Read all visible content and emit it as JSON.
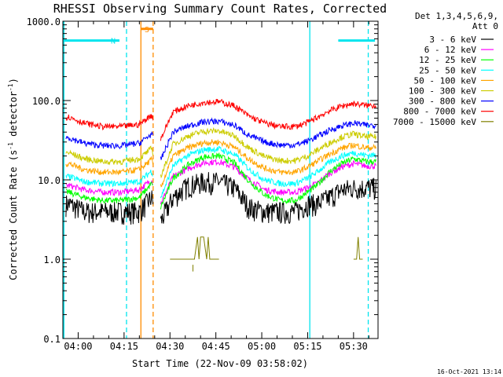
{
  "chart_data": {
    "type": "line",
    "title": "RHESSI Observing Summary Count Rates, Corrected",
    "xlabel": "Start Time (22-Nov-09 03:58:02)",
    "ylabel_prefix": "Corrected Count Rate (s",
    "ylabel_exp1": "-1",
    "ylabel_mid": " detector",
    "ylabel_exp2": "-1",
    "ylabel_suffix": ")",
    "x_unit": "minutes",
    "xlim": [
      235,
      338
    ],
    "ylim": [
      0.1,
      1000
    ],
    "yscale": "log",
    "x_ticks": [
      {
        "value": 240,
        "label": "04:00"
      },
      {
        "value": 255,
        "label": "04:15"
      },
      {
        "value": 270,
        "label": "04:30"
      },
      {
        "value": 285,
        "label": "04:45"
      },
      {
        "value": 300,
        "label": "05:00"
      },
      {
        "value": 315,
        "label": "05:15"
      },
      {
        "value": 330,
        "label": "05:30"
      }
    ],
    "y_ticks": [
      {
        "value": 0.1,
        "label": "0.1"
      },
      {
        "value": 1,
        "label": "1.0"
      },
      {
        "value": 10,
        "label": "10.0"
      },
      {
        "value": 100,
        "label": "100.0"
      },
      {
        "value": 1000,
        "label": "1000.0"
      }
    ],
    "legend": {
      "header1": "Det 1,3,4,5,6,9,",
      "header2": "Att 0",
      "placement": "right"
    },
    "series": [
      {
        "name": "3 - 6 keV",
        "color": "#000000",
        "x": [
          237,
          242,
          248,
          254,
          260,
          264,
          267,
          271,
          276,
          281,
          286,
          291,
          296,
          301,
          306,
          311,
          315,
          318,
          322,
          326,
          330,
          334
        ],
        "values": [
          5.0,
          4.0,
          4.0,
          4.0,
          4.0,
          6.0,
          3.0,
          6.0,
          8.5,
          9.5,
          9.5,
          8.0,
          4.5,
          4.0,
          4.0,
          4.0,
          5.0,
          5.0,
          6.0,
          7.5,
          8.0,
          8.0
        ]
      },
      {
        "name": "6 - 12 keV",
        "color": "#ff00ff",
        "x": [
          237,
          242,
          248,
          254,
          260,
          264,
          267,
          271,
          276,
          281,
          286,
          291,
          296,
          301,
          306,
          311,
          315,
          318,
          322,
          326,
          330,
          334
        ],
        "values": [
          8.5,
          7.5,
          7.0,
          7.0,
          7.5,
          10.0,
          5.0,
          11.0,
          14.0,
          16.5,
          17.0,
          14.5,
          10.0,
          7.5,
          7.0,
          7.0,
          8.0,
          9.0,
          12.0,
          14.5,
          16.0,
          15.0
        ]
      },
      {
        "name": "12 - 25 keV",
        "color": "#00ff00",
        "x": [
          237,
          242,
          248,
          254,
          260,
          264,
          267,
          271,
          276,
          281,
          286,
          291,
          296,
          301,
          306,
          311,
          315,
          318,
          322,
          326,
          330,
          334
        ],
        "values": [
          7.0,
          6.0,
          5.5,
          5.5,
          6.0,
          9.0,
          4.5,
          10.5,
          15.5,
          19.5,
          20.0,
          16.5,
          9.5,
          6.5,
          5.5,
          5.5,
          7.0,
          8.5,
          12.5,
          16.0,
          18.5,
          17.0
        ]
      },
      {
        "name": "25 - 50 keV",
        "color": "#00ffff",
        "x": [
          237,
          242,
          248,
          254,
          260,
          264,
          267,
          271,
          276,
          281,
          286,
          291,
          296,
          301,
          306,
          311,
          315,
          318,
          322,
          326,
          330,
          334
        ],
        "values": [
          11.0,
          9.5,
          9.0,
          9.0,
          9.5,
          13.0,
          6.0,
          15.0,
          20.5,
          24.0,
          24.5,
          21.0,
          13.5,
          10.0,
          9.0,
          9.0,
          10.5,
          12.5,
          16.5,
          20.0,
          22.0,
          20.5
        ]
      },
      {
        "name": "50 - 100 keV",
        "color": "#ffa500",
        "x": [
          237,
          242,
          248,
          254,
          260,
          264,
          267,
          271,
          276,
          281,
          286,
          291,
          296,
          301,
          306,
          311,
          315,
          318,
          322,
          326,
          330,
          334
        ],
        "values": [
          16.0,
          13.5,
          12.5,
          12.5,
          13.5,
          18.0,
          8.0,
          20.0,
          25.5,
          29.5,
          30.0,
          26.0,
          18.0,
          14.0,
          12.5,
          12.5,
          14.5,
          17.0,
          21.0,
          25.0,
          27.5,
          25.5
        ]
      },
      {
        "name": "100 - 300 keV",
        "color": "#cccc00",
        "x": [
          237,
          242,
          248,
          254,
          260,
          264,
          267,
          271,
          276,
          281,
          286,
          291,
          296,
          301,
          306,
          311,
          315,
          318,
          322,
          326,
          330,
          334
        ],
        "values": [
          22.0,
          18.5,
          17.0,
          17.0,
          18.5,
          25.0,
          11.0,
          28.0,
          36.0,
          41.0,
          41.5,
          36.0,
          25.0,
          19.5,
          17.5,
          17.5,
          20.0,
          23.5,
          29.0,
          34.5,
          38.0,
          35.0
        ]
      },
      {
        "name": "300 - 800 keV",
        "color": "#0000ff",
        "x": [
          237,
          242,
          248,
          254,
          260,
          264,
          267,
          271,
          276,
          281,
          286,
          291,
          296,
          301,
          306,
          311,
          315,
          318,
          322,
          326,
          330,
          334
        ],
        "values": [
          34.0,
          29.0,
          27.0,
          27.0,
          29.0,
          38.0,
          18.0,
          40.0,
          48.0,
          54.0,
          55.0,
          49.0,
          36.0,
          30.0,
          27.5,
          27.5,
          31.0,
          35.0,
          42.0,
          48.0,
          52.0,
          49.0
        ]
      },
      {
        "name": "800 - 7000 keV",
        "color": "#ff0000",
        "x": [
          237,
          242,
          248,
          254,
          260,
          264,
          267,
          271,
          276,
          281,
          286,
          291,
          296,
          301,
          306,
          311,
          315,
          318,
          322,
          326,
          330,
          334
        ],
        "values": [
          62.0,
          52.0,
          47.0,
          47.0,
          50.0,
          66.0,
          33.0,
          72.0,
          86.0,
          95.0,
          97.0,
          86.0,
          63.0,
          52.0,
          47.0,
          47.0,
          53.0,
          61.0,
          74.0,
          85.0,
          92.0,
          87.0
        ]
      },
      {
        "name": "7000 - 15000 keV",
        "color": "#808000",
        "segments": [
          {
            "x": [
              270,
              273,
              276,
              278,
              279,
              279.5,
              280,
              281,
              282,
              282.5,
              283,
              284,
              286
            ],
            "values": [
              1.0,
              1.0,
              1.0,
              1.0,
              1.9,
              1.0,
              1.9,
              1.9,
              1.0,
              1.9,
              1.0,
              1.0,
              1.0
            ]
          },
          {
            "x": [
              277.5,
              277.5
            ],
            "values": [
              0.7,
              0.85
            ]
          },
          {
            "x": [
              330,
              331,
              331.5,
              332,
              333
            ],
            "values": [
              1.0,
              1.0,
              1.9,
              1.0,
              1.0
            ]
          }
        ]
      }
    ],
    "bars": [
      {
        "label": "N",
        "color": "#00e5ee",
        "x_start": 235,
        "x_end": 253.5,
        "y": 570
      },
      {
        "label": "",
        "color": "#00e5ee",
        "x_start": 325,
        "x_end": 337,
        "y": 570
      },
      {
        "label": "S",
        "color": "#ff8c00",
        "x_start": 260.5,
        "x_end": 264.5,
        "y": 800
      }
    ],
    "vlines": [
      {
        "x": 255.8,
        "color": "#00e5ee",
        "style": "dashed"
      },
      {
        "x": 260.5,
        "color": "#ff8c00",
        "style": "solid"
      },
      {
        "x": 264.5,
        "color": "#ff8c00",
        "style": "dashed"
      },
      {
        "x": 315.7,
        "color": "#00e5ee",
        "style": "solid"
      },
      {
        "x": 334.8,
        "color": "#00e5ee",
        "style": "dashed"
      }
    ],
    "left_edge": {
      "color": "#00e5ee"
    }
  },
  "timestamp": "16-Oct-2021 13:14"
}
